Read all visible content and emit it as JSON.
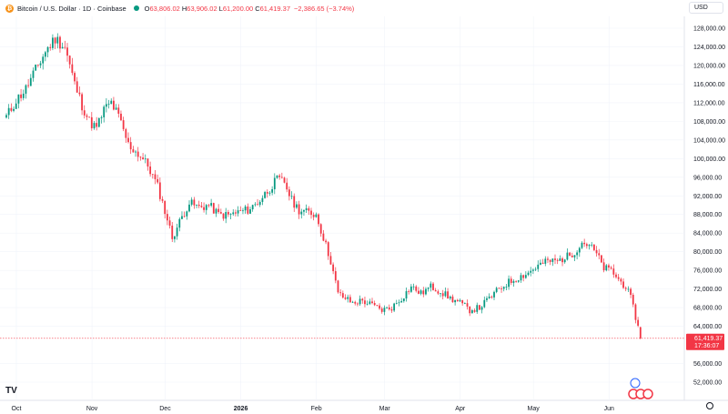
{
  "header": {
    "title": "Bitcoin / U.S. Dollar · 1D · Coinbase",
    "coin_symbol": "₿",
    "o_label": "O",
    "o_value": "63,806.02",
    "h_label": "H",
    "h_value": "63,906.02",
    "l_label": "L",
    "l_value": "61,200.00",
    "c_label": "C",
    "c_value": "61,419.37",
    "change": "−2,386.65 (−3.74%)"
  },
  "currency_selector": "USD",
  "last_price_label": "61,419.37",
  "countdown_label": "17:36:07",
  "colors": {
    "up": "#089981",
    "down": "#f23645",
    "brand": "#f7931a"
  },
  "icons": {
    "logo": "tradingview-logo-icon",
    "settings": "gear-icon",
    "events": "economic-events-icon"
  },
  "logo_text": "TV",
  "chart_data": {
    "type": "candlestick",
    "y_ticks": [
      "128,000.00",
      "124,000.00",
      "120,000.00",
      "116,000.00",
      "112,000.00",
      "108,000.00",
      "104,000.00",
      "100,000.00",
      "96,000.00",
      "92,000.00",
      "88,000.00",
      "84,000.00",
      "80,000.00",
      "76,000.00",
      "72,000.00",
      "68,000.00",
      "64,000.00",
      "56,000.00",
      "52,000.00"
    ],
    "x_ticks": [
      "Oct",
      "Nov",
      "Dec",
      "2026",
      "Feb",
      "Mar",
      "Apr",
      "May",
      "Jun"
    ],
    "ylim": [
      49000,
      132000
    ],
    "last_price": 61419.37,
    "anchors": [
      [
        0,
        109000
      ],
      [
        4,
        112500
      ],
      [
        8,
        115000
      ],
      [
        11,
        118000
      ],
      [
        16,
        123000
      ],
      [
        20,
        125800
      ],
      [
        24,
        124000
      ],
      [
        28,
        116000
      ],
      [
        31,
        111500
      ],
      [
        34,
        108000
      ],
      [
        37,
        106500
      ],
      [
        40,
        110500
      ],
      [
        43,
        112000
      ],
      [
        46,
        109000
      ],
      [
        50,
        103000
      ],
      [
        55,
        100500
      ],
      [
        58,
        98500
      ],
      [
        62,
        94000
      ],
      [
        66,
        87000
      ],
      [
        68,
        83000
      ],
      [
        72,
        87500
      ],
      [
        75,
        90500
      ],
      [
        79,
        89500
      ],
      [
        83,
        90000
      ],
      [
        87,
        88000
      ],
      [
        91,
        87800
      ],
      [
        95,
        88500
      ],
      [
        99,
        89000
      ],
      [
        103,
        90500
      ],
      [
        107,
        93000
      ],
      [
        111,
        95500
      ],
      [
        114,
        95000
      ],
      [
        117,
        91000
      ],
      [
        120,
        89000
      ],
      [
        123,
        88500
      ],
      [
        127,
        88000
      ],
      [
        130,
        83000
      ],
      [
        133,
        78000
      ],
      [
        136,
        71000
      ],
      [
        139,
        70000
      ],
      [
        142,
        69000
      ],
      [
        146,
        69500
      ],
      [
        150,
        68500
      ],
      [
        154,
        67500
      ],
      [
        158,
        68000
      ],
      [
        162,
        70000
      ],
      [
        166,
        72500
      ],
      [
        170,
        71000
      ],
      [
        174,
        72500
      ],
      [
        178,
        71500
      ],
      [
        182,
        70000
      ],
      [
        186,
        69000
      ],
      [
        190,
        67500
      ],
      [
        194,
        68000
      ],
      [
        198,
        70000
      ],
      [
        202,
        72000
      ],
      [
        206,
        73500
      ],
      [
        210,
        74500
      ],
      [
        214,
        75500
      ],
      [
        218,
        77000
      ],
      [
        222,
        78000
      ],
      [
        226,
        78000
      ],
      [
        230,
        79000
      ],
      [
        233,
        80000
      ],
      [
        236,
        82000
      ],
      [
        239,
        81500
      ],
      [
        242,
        79500
      ],
      [
        245,
        76500
      ],
      [
        248,
        76000
      ],
      [
        251,
        74000
      ],
      [
        254,
        72500
      ],
      [
        256,
        70000
      ],
      [
        258,
        66000
      ],
      [
        259,
        63800
      ],
      [
        260,
        61419
      ]
    ],
    "x_tick_day_index": [
      0,
      31,
      61,
      92,
      123,
      151,
      182,
      212,
      243
    ]
  }
}
